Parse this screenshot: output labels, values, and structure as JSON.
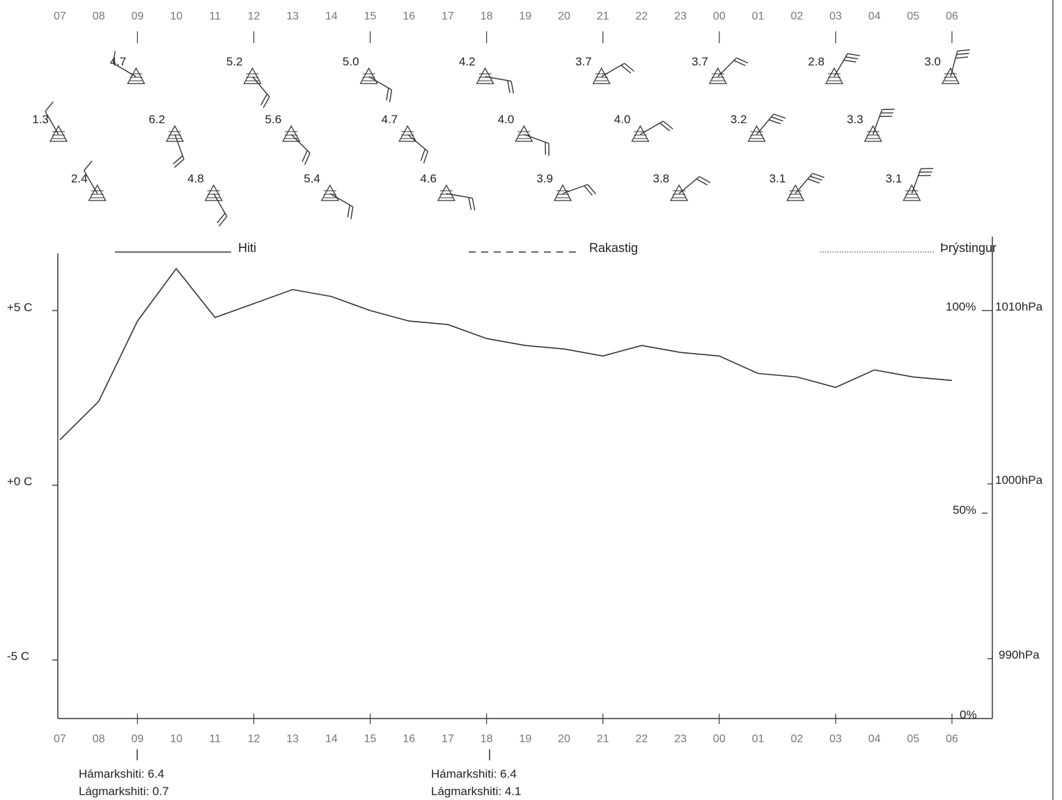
{
  "chart_data": {
    "type": "line",
    "hours": [
      "07",
      "08",
      "09",
      "10",
      "11",
      "12",
      "13",
      "14",
      "15",
      "16",
      "17",
      "18",
      "19",
      "20",
      "21",
      "22",
      "23",
      "00",
      "01",
      "02",
      "03",
      "04",
      "05",
      "06"
    ],
    "legend": {
      "temperature": "Hiti",
      "humidity": "Rakastig",
      "pressure": "Þrýstingur"
    },
    "left_axis": {
      "ticks": [
        "+5 C",
        "+0 C",
        "-5 C"
      ],
      "tick_values": [
        5,
        0,
        -5
      ],
      "range": [
        -6.8,
        6.6
      ]
    },
    "right_axis_humidity": {
      "ticks": [
        "100%",
        "50%",
        "0%"
      ],
      "tick_values": [
        100,
        50,
        0
      ]
    },
    "right_axis_pressure": {
      "ticks": [
        "1010hPa",
        "1000hPa",
        "990hPa"
      ],
      "tick_values": [
        1010,
        1000,
        990
      ]
    },
    "series": [
      {
        "name": "Hiti",
        "values": [
          1.3,
          2.4,
          4.7,
          6.2,
          4.8,
          5.2,
          5.6,
          5.4,
          5.0,
          4.7,
          4.6,
          4.2,
          4.0,
          3.9,
          3.7,
          4.0,
          3.8,
          3.7,
          3.2,
          3.1,
          2.8,
          3.3,
          3.1,
          3.0
        ]
      }
    ],
    "wind": {
      "speeds": [
        "1.3",
        "2.4",
        "4.7",
        "6.2",
        "4.8",
        "5.2",
        "5.6",
        "5.4",
        "5.0",
        "4.7",
        "4.6",
        "4.2",
        "4.0",
        "3.9",
        "3.7",
        "4.0",
        "3.8",
        "3.7",
        "3.2",
        "3.1",
        "2.8",
        "3.3",
        "3.1",
        "3.0"
      ],
      "direction_deg": [
        330,
        330,
        300,
        160,
        150,
        140,
        135,
        120,
        120,
        130,
        100,
        100,
        110,
        70,
        60,
        60,
        50,
        45,
        40,
        40,
        30,
        20,
        20,
        15
      ],
      "barbs": [
        1,
        1,
        1,
        2,
        2,
        2,
        2,
        2,
        2,
        2,
        2,
        2,
        2,
        2,
        2,
        2,
        2,
        2,
        3,
        3,
        3,
        3,
        3,
        3
      ]
    },
    "annotations": [
      {
        "hour": "09",
        "max_label": "Hámarkshiti: 6.4",
        "min_label": "Lágmarkshiti: 0.7"
      },
      {
        "hour": "18",
        "max_label": "Hámarkshiti: 6.4",
        "min_label": "Lágmarkshiti: 4.1"
      }
    ]
  }
}
